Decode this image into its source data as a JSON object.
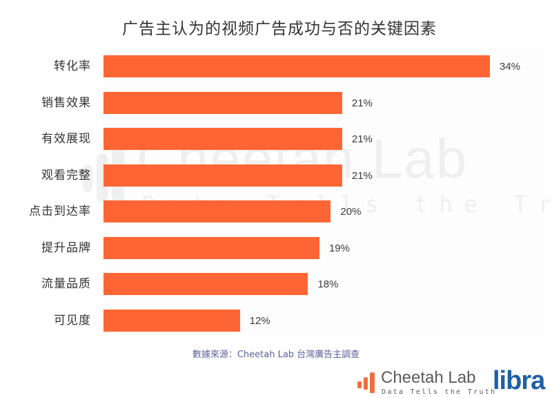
{
  "title": "广告主认为的视频广告成功与否的关键因素",
  "source_note": "數據來源：Cheetah Lab 台灣廣告主調查",
  "watermark": {
    "name": "Cheetah Lab",
    "tagline": "Data Tells the Truth"
  },
  "logos": {
    "cheetah_name": "Cheetah Lab",
    "cheetah_tagline": "Data Tells the Truth",
    "libra": "libra"
  },
  "colors": {
    "bar": "#fd6634",
    "title": "#333333",
    "source": "#5a5f9a",
    "libra": "#1d5fa8"
  },
  "chart_data": {
    "type": "bar",
    "orientation": "horizontal",
    "title": "广告主认为的视频广告成功与否的关键因素",
    "xlabel": "",
    "ylabel": "",
    "categories": [
      "转化率",
      "销售效果",
      "有效展现",
      "观看完整",
      "点击到达率",
      "提升品牌",
      "流量品质",
      "可见度"
    ],
    "values": [
      34,
      21,
      21,
      21,
      20,
      19,
      18,
      12
    ],
    "value_labels": [
      "34%",
      "21%",
      "21%",
      "21%",
      "20%",
      "19%",
      "18%",
      "12%"
    ],
    "unit": "%",
    "grid": false,
    "legend": null,
    "source": "數據來源：Cheetah Lab 台灣廣告主調查"
  }
}
